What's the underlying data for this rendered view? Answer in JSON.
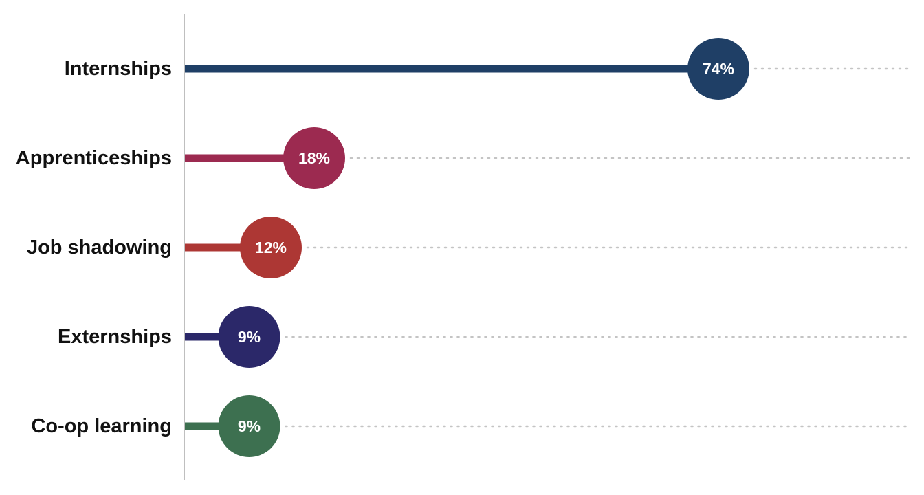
{
  "chart_data": {
    "type": "bar",
    "style": "lollipop",
    "orientation": "horizontal",
    "categories": [
      "Internships",
      "Apprenticeships",
      "Job shadowing",
      "Externships",
      "Co-op learning"
    ],
    "values": [
      74,
      18,
      12,
      9,
      9
    ],
    "value_labels": [
      "74%",
      "18%",
      "12%",
      "9%",
      "9%"
    ],
    "colors": [
      "#1f3f66",
      "#9c2a50",
      "#ad3734",
      "#2b2869",
      "#3d7050"
    ],
    "xlim": [
      0,
      100
    ],
    "grid": false,
    "legend": "none"
  }
}
